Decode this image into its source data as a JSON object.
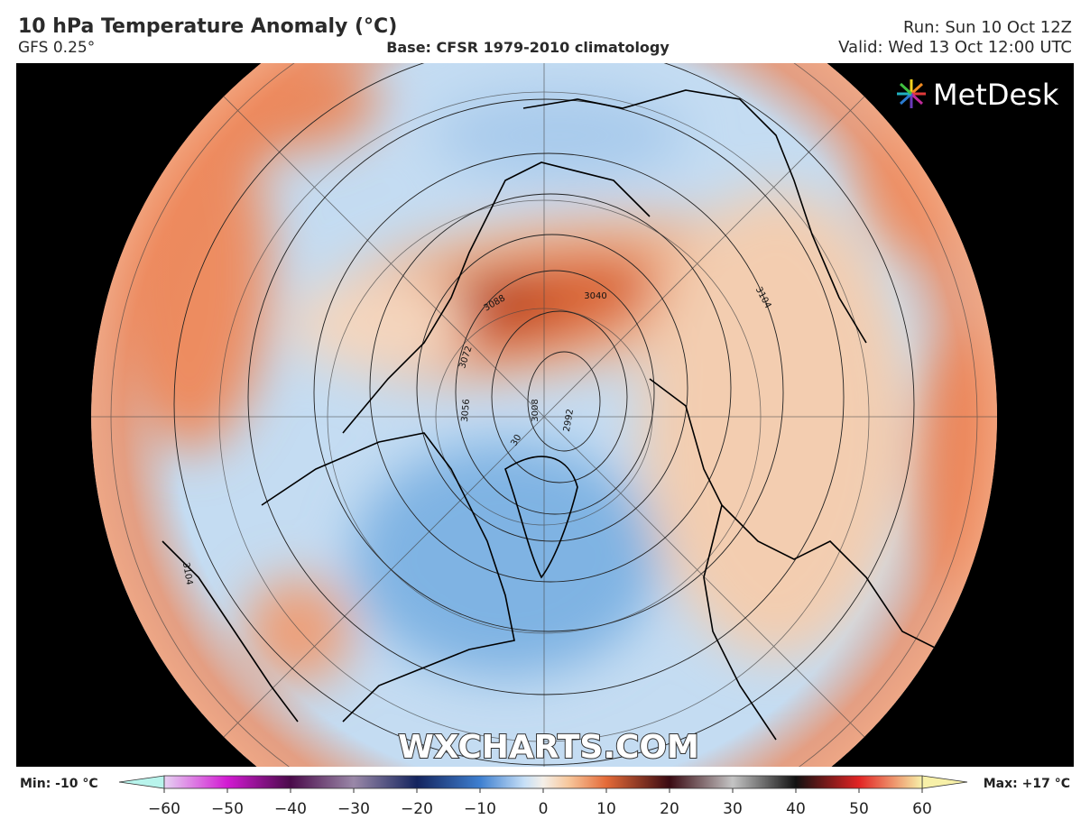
{
  "header": {
    "title": "10 hPa Temperature Anomaly (°C)",
    "model": "GFS 0.25°",
    "base": "Base: CFSR 1979-2010 climatology",
    "run": "Run: Sun 10 Oct 12Z",
    "valid": "Valid: Wed 13 Oct 12:00 UTC"
  },
  "map": {
    "logo": "MetDesk",
    "watermark": "WXCHARTS.COM",
    "contour_labels": [
      "3088",
      "3072",
      "3056",
      "3008",
      "2992",
      "3040",
      "3104",
      "3104",
      "30"
    ]
  },
  "colorbar": {
    "min_label": "Min: -10 °C",
    "max_label": "Max: +17 °C",
    "ticks": [
      {
        "value": -60,
        "label": "−60"
      },
      {
        "value": -50,
        "label": "−50"
      },
      {
        "value": -40,
        "label": "−40"
      },
      {
        "value": -30,
        "label": "−30"
      },
      {
        "value": -20,
        "label": "−20"
      },
      {
        "value": -10,
        "label": "−10"
      },
      0,
      10,
      20,
      30,
      40,
      50,
      60
    ],
    "stops": [
      [
        -60,
        "#e6d2f2"
      ],
      [
        -50,
        "#d21ad2"
      ],
      [
        -40,
        "#4a0a4a"
      ],
      [
        -30,
        "#9a88a8"
      ],
      [
        -20,
        "#14245e"
      ],
      [
        -10,
        "#3e7fd0"
      ],
      [
        -3,
        "#c6dff6"
      ],
      [
        0,
        "#f4efe8"
      ],
      [
        4,
        "#f7c79c"
      ],
      [
        10,
        "#e46a38"
      ],
      [
        20,
        "#3a0a12"
      ],
      [
        30,
        "#c4c4c4"
      ],
      [
        40,
        "#111111"
      ],
      [
        50,
        "#e22424"
      ],
      [
        60,
        "#f7f0a8"
      ]
    ]
  }
}
